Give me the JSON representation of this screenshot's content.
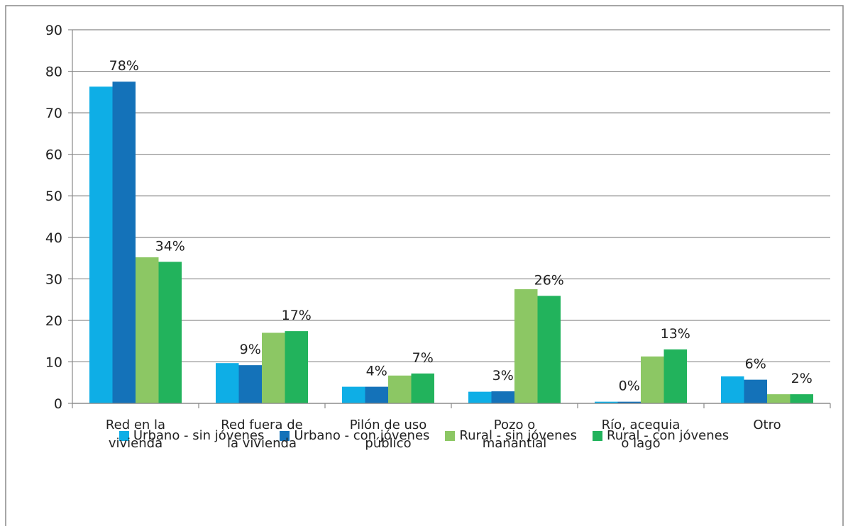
{
  "chart_data": {
    "type": "bar",
    "categories": [
      "Red en la\nvivienda",
      "Red fuera de\nla vivienda",
      "Pilón de uso\npúblico",
      "Pozo o\nmanantial",
      "Río, acequia\no lago",
      "Otro"
    ],
    "series": [
      {
        "name": "Urbano - sin jóvenes",
        "color": "#0eaee6",
        "values": [
          76.3,
          9.7,
          4.0,
          2.8,
          0.4,
          6.5
        ]
      },
      {
        "name": "Urbano - con jóvenes",
        "color": "#1472b9",
        "values": [
          77.5,
          9.2,
          4.0,
          2.9,
          0.4,
          5.7
        ],
        "value_labels": [
          "78%",
          "9%",
          "4%",
          "3%",
          "0%",
          "6%"
        ]
      },
      {
        "name": "Rural - sin jóvenes",
        "color": "#8cc764",
        "values": [
          35.2,
          17.0,
          6.7,
          27.5,
          11.3,
          2.2
        ]
      },
      {
        "name": "Rural - con jóvenes",
        "color": "#22b35c",
        "values": [
          34.1,
          17.4,
          7.2,
          25.9,
          13.0,
          2.2
        ],
        "value_labels": [
          "34%",
          "17%",
          "7%",
          "26%",
          "13%",
          "2%"
        ]
      }
    ],
    "ylim": [
      0,
      90
    ],
    "yticks": [
      0,
      10,
      20,
      30,
      40,
      50,
      60,
      70,
      80,
      90
    ],
    "grid": true
  }
}
